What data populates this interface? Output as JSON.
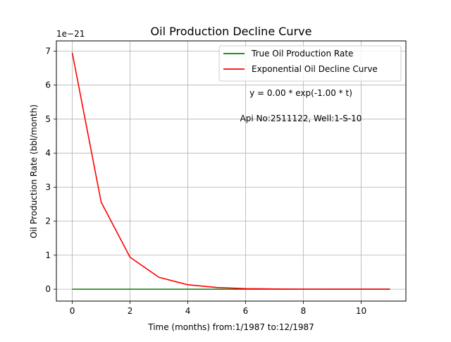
{
  "chart_data": {
    "type": "line",
    "title": "Oil Production Decline Curve",
    "xlabel": "Time (months) from:1/1987 to:12/1987",
    "ylabel": "Oil Production Rate (bbl/month)",
    "y_offset_label": "1e−21",
    "y_scale": 1e-21,
    "xlim": [
      -0.55,
      11.55
    ],
    "ylim": [
      -0.35,
      7.3
    ],
    "xticks": [
      0,
      2,
      4,
      6,
      8,
      10
    ],
    "yticks": [
      0,
      1,
      2,
      3,
      4,
      5,
      6,
      7
    ],
    "grid": true,
    "legend_position": "upper right",
    "x": [
      0,
      1,
      2,
      3,
      4,
      5,
      6,
      7,
      8,
      9,
      10,
      11
    ],
    "series": [
      {
        "name": "True Oil Production Rate",
        "color": "#008000",
        "values": [
          0,
          0,
          0,
          0,
          0,
          0,
          0,
          0,
          0,
          0,
          0,
          0
        ]
      },
      {
        "name": "Exponential Oil Decline Curve",
        "color": "#ff0000",
        "values": [
          6.95,
          2.56,
          0.94,
          0.35,
          0.13,
          0.05,
          0.018,
          0.0065,
          0.0024,
          0.0009,
          0.0003,
          0.0001
        ]
      }
    ],
    "annotations": [
      {
        "text": "y = 0.00 * exp(-1.00 * t)"
      },
      {
        "text": "Api No:2511122, Well:1-S-10"
      }
    ]
  }
}
